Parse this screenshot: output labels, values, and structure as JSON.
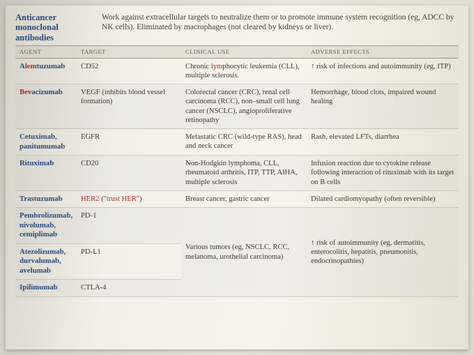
{
  "title": "Anticancer monoclonal antibodies",
  "description_pre": "Work against extracellular targets to neutralize them or to promote immune system recognition (eg, ADCC by NK cells). Eliminated by macrophages (not cleared by kidneys or liver).",
  "columns": {
    "agent": "AGENT",
    "target": "TARGET",
    "clinical": "CLINICAL USE",
    "adverse": "ADVERSE EFFECTS"
  },
  "rows": {
    "r1": {
      "agent_pre": "A",
      "agent_red": "lem",
      "agent_post": "tuzumab",
      "target": "CD52",
      "clinical_pre": "Chronic ",
      "clinical_red": "lym",
      "clinical_post": "phocytic leukemia (CLL), multiple sclerosis.",
      "adverse_arrow": "↑",
      "adverse": " risk of infections and autoimmunity (eg, ITP)"
    },
    "r2": {
      "agent_pre": "",
      "agent_red": "Bev",
      "agent_post": "acizumab",
      "target_pre": "VEGF (inhibits ",
      "target_red": "b",
      "target_post": "lood vessel formation)",
      "clinical": "Colorectal cancer (CRC), renal cell carcinoma (RCC), non–small cell lung cancer (NSCLC), angioproliferative retinopathy",
      "adverse": "Hemorrhage, blood clots, impaired wound healing"
    },
    "r3": {
      "agent": "Cetuximab, panitumumab",
      "target": "EGFR",
      "clinical": "Metastatic CRC (wild-type RAS), head and neck cancer",
      "adverse": "Rash, elevated LFTs, diarrhea"
    },
    "r4": {
      "agent": "Rituximab",
      "target": "CD20",
      "clinical": "Non-Hodgkin lymphoma, CLL, rheumatoid arthritis, ITP, TTP, AIHA, multiple sclerosis",
      "adverse": "Infusion reaction due to cytokine release following interaction of rituximab with its target on B cells"
    },
    "r5": {
      "agent_pre": "Tras",
      "agent_red": "t",
      "agent_post": "uzumab",
      "target_red1": "HER2",
      "target_mid": " (\"",
      "target_red2": "trust HER",
      "target_post": "\")",
      "clinical": "Breast cancer, gastric cancer",
      "adverse": "Dilated cardiomyopathy (often reversible)"
    },
    "r6": {
      "agent": "Pembrolizumab, nivolumab, cemiplimab",
      "target": "PD-1",
      "clinical": "Various tumors (eg, NSCLC, RCC, melanoma, urothelial carcinoma)",
      "adverse_arrow": "↑",
      "adverse": " risk of autoimmunity (eg, dermatitis, enterocolitis, hepatitis, pneumonitis, endocrinopathies)"
    },
    "r7": {
      "agent": "Atezolizumab, durvalumab, avelumab",
      "target": "PD-L1"
    },
    "r8": {
      "agent": "Ipilimumab",
      "target": "CTLA-4"
    }
  }
}
